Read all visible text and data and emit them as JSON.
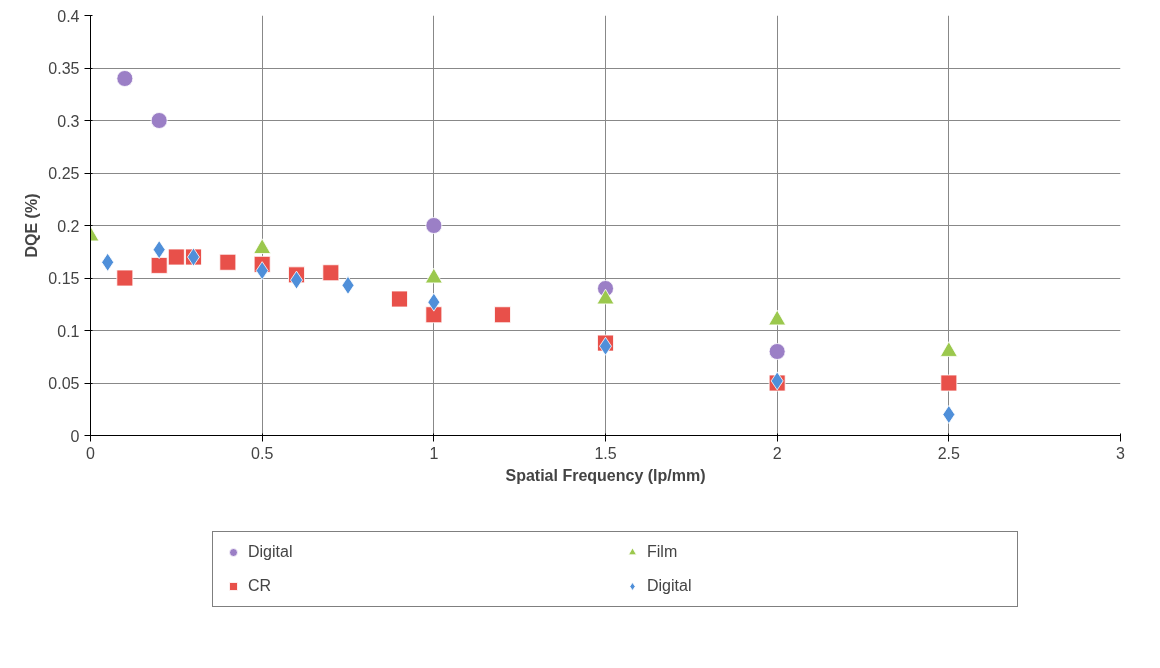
{
  "chart_data": {
    "type": "scatter",
    "xlabel": "Spatial Frequency (lp/mm)",
    "ylabel": "DQE (%)",
    "xlim": [
      0,
      3
    ],
    "xticks": [
      0,
      0.5,
      1,
      1.5,
      2,
      2.5,
      3
    ],
    "ylim": [
      0,
      0.4
    ],
    "yticks": [
      0,
      0.05,
      0.1,
      0.15,
      0.2,
      0.25,
      0.3,
      0.35,
      0.4
    ],
    "grid": true,
    "legend": "bottom",
    "series": [
      {
        "name": "Digital",
        "color": "#9b7fc6",
        "marker": "circle",
        "x": [
          0.1,
          0.2,
          1,
          1.5,
          2
        ],
        "values": [
          0.34,
          0.3,
          0.2,
          0.14,
          0.08
        ]
      },
      {
        "name": "CR",
        "color": "#e8504a",
        "marker": "square",
        "x": [
          0.1,
          0.2,
          0.25,
          0.3,
          0.4,
          0.5,
          0.6,
          0.7,
          0.9,
          1.0,
          1.2,
          1.5,
          2,
          2.5
        ],
        "values": [
          0.15,
          0.162,
          0.17,
          0.17,
          0.165,
          0.163,
          0.153,
          0.155,
          0.13,
          0.115,
          0.115,
          0.088,
          0.05,
          0.05
        ]
      },
      {
        "name": "Film",
        "color": "#9bc84d",
        "marker": "triangle",
        "x": [
          0,
          0.5,
          1,
          1.5,
          2,
          2.5
        ],
        "values": [
          0.19,
          0.178,
          0.15,
          0.13,
          0.11,
          0.08
        ]
      },
      {
        "name": "Digital",
        "color": "#4f8fd9",
        "marker": "diamond",
        "x": [
          0.05,
          0.2,
          0.3,
          0.5,
          0.6,
          0.75,
          1,
          1.5,
          2,
          2.5
        ],
        "values": [
          0.165,
          0.177,
          0.17,
          0.157,
          0.148,
          0.143,
          0.127,
          0.085,
          0.052,
          0.02
        ]
      }
    ]
  }
}
